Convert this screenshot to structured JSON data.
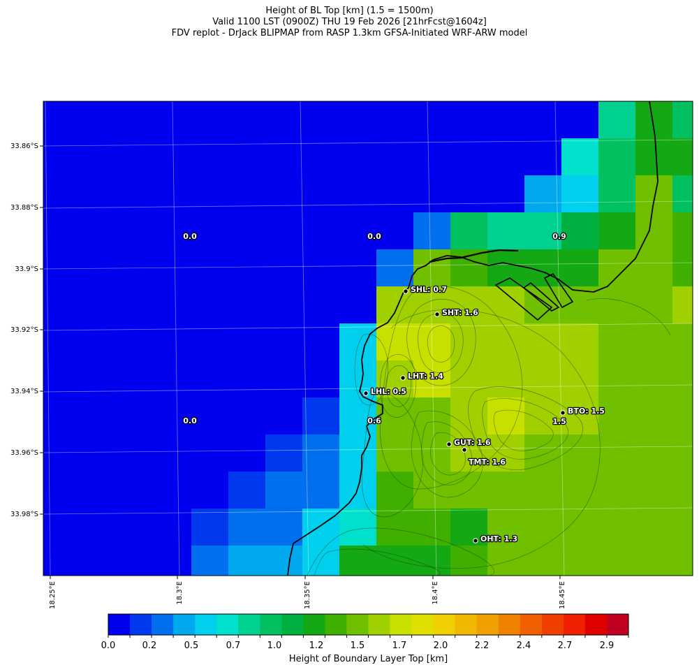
{
  "title": {
    "line1": "Height of BL Top [km] (1.5 = 1500m)",
    "line2": "Valid 1100 LST (0900Z) THU 19 Feb 2026 [21hrFcst@1604z]",
    "line3": "FDV replot - DrJack BLIPMAP from RASP 1.3km GFSA-Initiated WRF-ARW model"
  },
  "axes": {
    "lat_ticks": [
      "33.86°S",
      "33.88°S",
      "33.9°S",
      "33.92°S",
      "33.94°S",
      "33.96°S",
      "33.98°S"
    ],
    "lon_ticks": [
      "18.25°E",
      "18.3°E",
      "18.35°E",
      "18.4°E",
      "18.45°E"
    ]
  },
  "grid_values": [
    {
      "text": "0.0"
    },
    {
      "text": "0.0"
    },
    {
      "text": "0.9"
    },
    {
      "text": "0.0"
    },
    {
      "text": "0.6"
    },
    {
      "text": "1.5"
    }
  ],
  "stations": [
    {
      "label": "SHL: 0.7"
    },
    {
      "label": "SHT: 1.6"
    },
    {
      "label": "LHT: 1.4"
    },
    {
      "label": "LHL: 0.5"
    },
    {
      "label": "BTO: 1.5"
    },
    {
      "label": "GUT: 1.6"
    },
    {
      "label": "TMT: 1.6"
    },
    {
      "label": "OHT: 1.3"
    }
  ],
  "colorbar": {
    "title": "Height of Boundary Layer Top [km]",
    "tick_labels": [
      "0.0",
      "0.2",
      "0.5",
      "0.7",
      "1.0",
      "1.2",
      "1.5",
      "1.7",
      "2.0",
      "2.2",
      "2.4",
      "2.7",
      "2.9"
    ],
    "colors": [
      "#0000ee",
      "#0038ee",
      "#0070ee",
      "#00a8ee",
      "#00d0ee",
      "#00e0cc",
      "#00d090",
      "#00c060",
      "#00b040",
      "#14a814",
      "#40b000",
      "#70c000",
      "#a0d000",
      "#c8e000",
      "#e0e000",
      "#f0d000",
      "#f0b800",
      "#f0a000",
      "#f08000",
      "#f06000",
      "#f04000",
      "#f02000",
      "#e00000",
      "#c00020"
    ]
  }
}
